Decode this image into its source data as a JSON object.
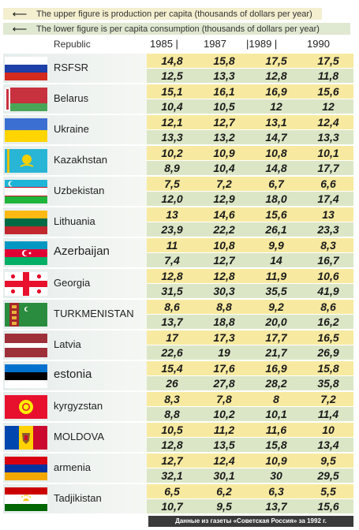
{
  "legend": {
    "upper": "The upper figure is production per capita (thousands of dollars per year)",
    "lower": "The lower figure is per capita consumption (thousands of dollars per year)"
  },
  "header": {
    "republic": "Republic",
    "years": [
      "1985 |",
      "1987",
      "|1989 |",
      "1990"
    ]
  },
  "rows": [
    {
      "name": "RSFSR",
      "flag": "russia-flag",
      "production": [
        "14,8",
        "15,8",
        "17,5",
        "17,5"
      ],
      "consumption": [
        "12,5",
        "13,3",
        "12,8",
        "11,8"
      ]
    },
    {
      "name": "Belarus",
      "flag": "belarus-flag",
      "production": [
        "15,1",
        "16,1",
        "16,9",
        "15,6"
      ],
      "consumption": [
        "10,4",
        "10,5",
        "12",
        "12"
      ]
    },
    {
      "name": "Ukraine",
      "flag": "ukraine-flag",
      "production": [
        "12,1",
        "12,7",
        "13,1",
        "12,4"
      ],
      "consumption": [
        "13,3",
        "13,2",
        "14,7",
        "13,3"
      ]
    },
    {
      "name": "Kazakhstan",
      "flag": "kazakhstan-flag",
      "production": [
        "10,2",
        "10,9",
        "10,8",
        "10,1"
      ],
      "consumption": [
        "8,9",
        "10,4",
        "14,8",
        "17,7"
      ]
    },
    {
      "name": "Uzbekistan",
      "flag": "uzbekistan-flag",
      "production": [
        "7,5",
        "7,2",
        "6,7",
        "6,6"
      ],
      "consumption": [
        "12,0",
        "12,9",
        "18,0",
        "17,4"
      ]
    },
    {
      "name": "Lithuania",
      "flag": "lithuania-flag",
      "production": [
        "13",
        "14,6",
        "15,6",
        "13"
      ],
      "consumption": [
        "23,9",
        "22,2",
        "26,1",
        "23,3"
      ]
    },
    {
      "name": "Azerbaijan",
      "flag": "azerbaijan-flag",
      "production": [
        "11",
        "10,8",
        "9,9",
        "8,3"
      ],
      "consumption": [
        "7,4",
        "12,7",
        "14",
        "16,7"
      ]
    },
    {
      "name": "Georgia",
      "flag": "georgia-flag",
      "production": [
        "12,8",
        "12,8",
        "11,9",
        "10,6"
      ],
      "consumption": [
        "31,5",
        "30,3",
        "35,5",
        "41,9"
      ]
    },
    {
      "name": "TURKMENISTAN",
      "flag": "turkmenistan-flag",
      "production": [
        "8,6",
        "8,8",
        "9,2",
        "8,6"
      ],
      "consumption": [
        "13,7",
        "18,8",
        "20,0",
        "16,2"
      ]
    },
    {
      "name": "Latvia",
      "flag": "latvia-flag",
      "production": [
        "17",
        "17,3",
        "17,7",
        "16,5"
      ],
      "consumption": [
        "22,6",
        "19",
        "21,7",
        "26,9"
      ]
    },
    {
      "name": "estonia",
      "flag": "estonia-flag",
      "production": [
        "15,4",
        "17,6",
        "16,9",
        "15,8"
      ],
      "consumption": [
        "26",
        "27,8",
        "28,2",
        "35,8"
      ]
    },
    {
      "name": "kyrgyzstan",
      "flag": "kyrgyzstan-flag",
      "production": [
        "8,3",
        "7,8",
        "8",
        "7,2"
      ],
      "consumption": [
        "8,8",
        "10,2",
        "10,1",
        "11,4"
      ]
    },
    {
      "name": "MOLDOVA",
      "flag": "moldova-flag",
      "production": [
        "10,5",
        "11,2",
        "11,6",
        "10"
      ],
      "consumption": [
        "12,8",
        "13,5",
        "15,8",
        "13,4"
      ]
    },
    {
      "name": "armenia",
      "flag": "armenia-flag",
      "production": [
        "12,7",
        "12,4",
        "10,9",
        "9,5"
      ],
      "consumption": [
        "32,1",
        "30,1",
        "30",
        "29,5"
      ]
    },
    {
      "name": "Tadjikistan",
      "flag": "tajikistan-flag",
      "production": [
        "6,5",
        "6,2",
        "6,3",
        "5,5"
      ],
      "consumption": [
        "10,7",
        "9,5",
        "13,7",
        "15,6"
      ]
    }
  ],
  "footer": "Данные из газеты «Советская Россия» за 1992 г."
}
